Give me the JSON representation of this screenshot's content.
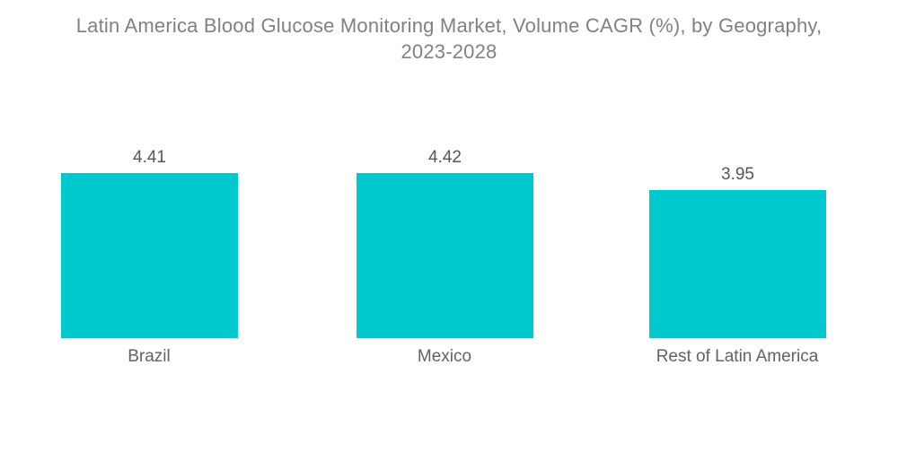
{
  "title": {
    "line1": "Latin America Blood Glucose Monitoring Market, Volume CAGR (%), by Geography,",
    "line2": "2023-2028"
  },
  "chart_data": {
    "type": "bar",
    "title": "Latin America Blood Glucose Monitoring Market, Volume CAGR (%), by Geography, 2023-2028",
    "categories": [
      "Brazil",
      "Mexico",
      "Rest of Latin America"
    ],
    "values": [
      4.41,
      4.42,
      3.95
    ],
    "value_labels": [
      "4.41",
      "4.42",
      "3.95"
    ],
    "xlabel": "",
    "ylabel": "",
    "ylim": [
      0,
      4.42
    ],
    "grid": false,
    "legend": false,
    "axes_shown": false,
    "bar_color": "#00C9CE"
  },
  "colors": {
    "bar": "#00C9CE",
    "title_text": "#7F8184",
    "value_text": "#54565A",
    "category_text": "#606265",
    "background": "#FFFFFF"
  }
}
